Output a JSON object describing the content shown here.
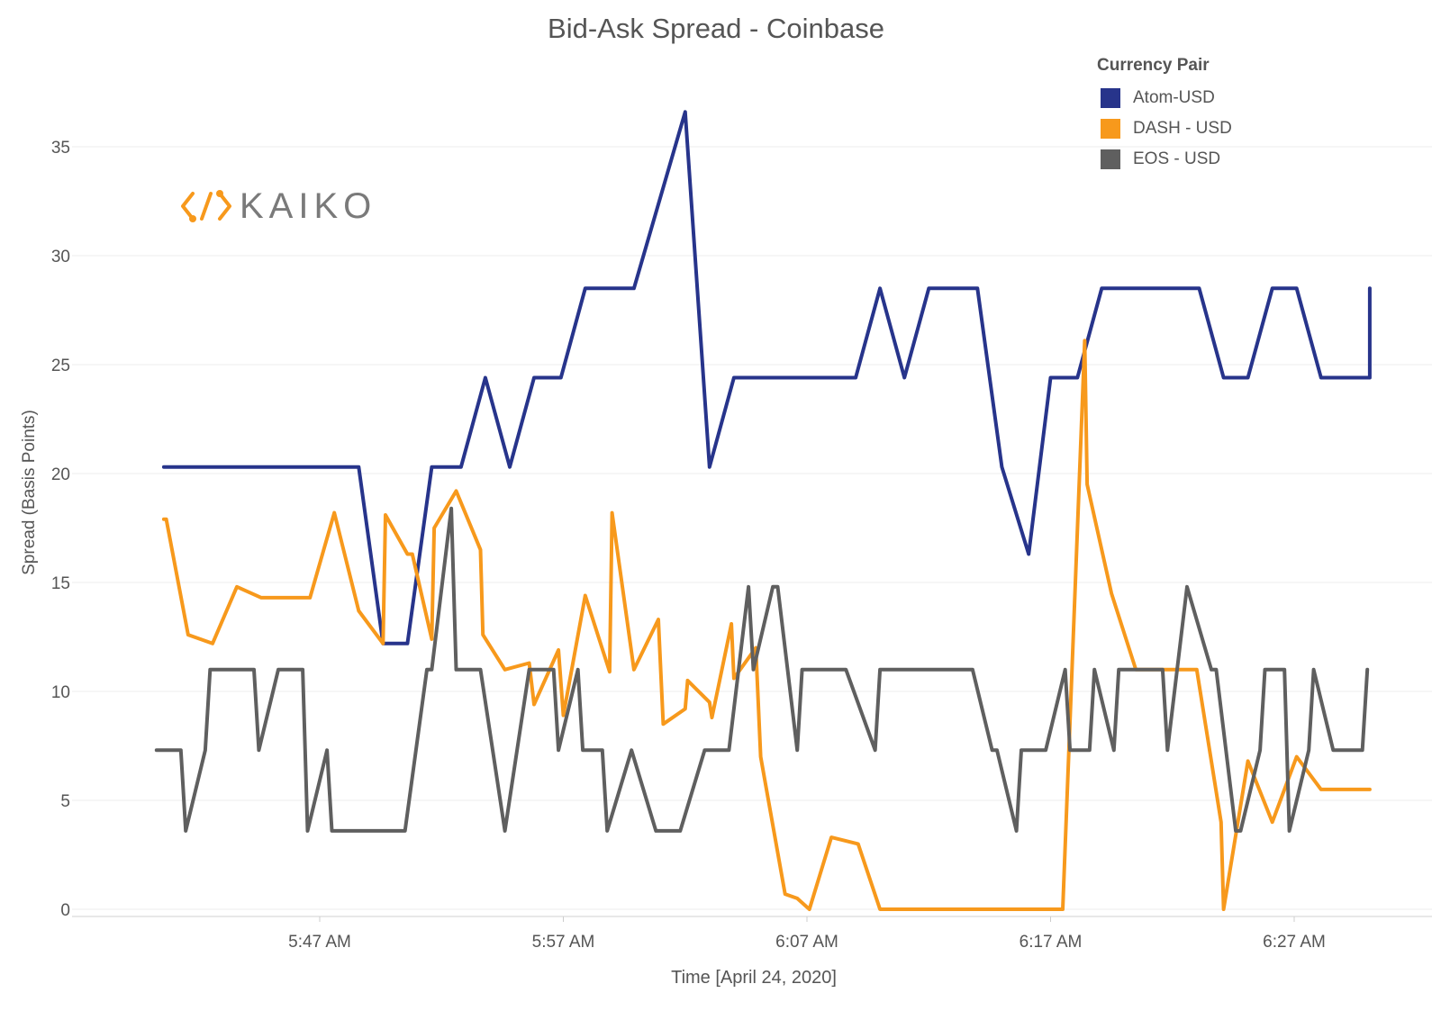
{
  "chart_data": {
    "type": "line",
    "title": "Bid-Ask Spread - Coinbase",
    "xlabel": "Time [April 24, 2020]",
    "ylabel": "Spread (Basis Points)",
    "ylim": [
      0,
      37
    ],
    "y_ticks": [
      0,
      5,
      10,
      15,
      20,
      25,
      30,
      35
    ],
    "x_ticks": [
      {
        "t": 47,
        "label": "5:47 AM"
      },
      {
        "t": 57,
        "label": "5:57 AM"
      },
      {
        "t": 67,
        "label": "6:07 AM"
      },
      {
        "t": 77,
        "label": "6:17 AM"
      },
      {
        "t": 87,
        "label": "6:27 AM"
      }
    ],
    "xlim": [
      40.3,
      92.9
    ],
    "x_unit_note": "x values are minutes past 5:00 AM on April 24, 2020",
    "grid": "horizontal",
    "legend_title": "Currency Pair",
    "legend_position": "top-right",
    "series": [
      {
        "name": "Atom-USD",
        "color": "#27348b",
        "points": [
          [
            40.6,
            20.3
          ],
          [
            48.6,
            20.3
          ],
          [
            49.6,
            12.2
          ],
          [
            50.6,
            12.2
          ],
          [
            51.6,
            20.3
          ],
          [
            52.8,
            20.3
          ],
          [
            53.8,
            24.4
          ],
          [
            54.8,
            20.3
          ],
          [
            55.8,
            24.4
          ],
          [
            56.9,
            24.4
          ],
          [
            57.9,
            28.5
          ],
          [
            59.9,
            28.5
          ],
          [
            62,
            36.6
          ],
          [
            63,
            20.3
          ],
          [
            64,
            24.4
          ],
          [
            69,
            24.4
          ],
          [
            70,
            28.5
          ],
          [
            71,
            24.4
          ],
          [
            72,
            28.5
          ],
          [
            74,
            28.5
          ],
          [
            75,
            20.3
          ],
          [
            76.1,
            16.3
          ],
          [
            77,
            24.4
          ],
          [
            78.1,
            24.4
          ],
          [
            79.1,
            28.5
          ],
          [
            83.1,
            28.5
          ],
          [
            84.1,
            24.4
          ],
          [
            85.1,
            24.4
          ],
          [
            86.1,
            28.5
          ],
          [
            87.1,
            28.5
          ],
          [
            88.1,
            24.4
          ],
          [
            90.1,
            24.4
          ],
          [
            90.1,
            28.5
          ]
        ]
      },
      {
        "name": "DASH - USD",
        "color": "#f7991c",
        "points": [
          [
            40.6,
            17.9
          ],
          [
            40.7,
            17.9
          ],
          [
            41.6,
            12.6
          ],
          [
            42.6,
            12.2
          ],
          [
            43.6,
            14.8
          ],
          [
            44.6,
            14.3
          ],
          [
            46.6,
            14.3
          ],
          [
            47.6,
            18.2
          ],
          [
            48.6,
            13.7
          ],
          [
            49.6,
            12.2
          ],
          [
            49.7,
            18.1
          ],
          [
            50.6,
            16.3
          ],
          [
            50.8,
            16.3
          ],
          [
            51.6,
            12.4
          ],
          [
            51.7,
            17.5
          ],
          [
            52.6,
            19.2
          ],
          [
            53.6,
            16.5
          ],
          [
            53.7,
            12.6
          ],
          [
            54.6,
            11
          ],
          [
            55.6,
            11.3
          ],
          [
            55.8,
            9.4
          ],
          [
            56.8,
            11.9
          ],
          [
            57,
            8.9
          ],
          [
            57.9,
            14.4
          ],
          [
            58.9,
            10.9
          ],
          [
            59,
            18.2
          ],
          [
            59.9,
            11
          ],
          [
            60.9,
            13.3
          ],
          [
            61.1,
            8.5
          ],
          [
            62,
            9.2
          ],
          [
            62.1,
            10.5
          ],
          [
            63,
            9.5
          ],
          [
            63.1,
            8.8
          ],
          [
            63.9,
            13.1
          ],
          [
            64,
            10.6
          ],
          [
            64.9,
            12
          ],
          [
            65.1,
            7
          ],
          [
            66.1,
            0.7
          ],
          [
            66.6,
            0.5
          ],
          [
            67.1,
            0
          ],
          [
            68,
            3.3
          ],
          [
            69.1,
            3
          ],
          [
            70,
            0
          ],
          [
            77.5,
            0
          ],
          [
            78.4,
            26.1
          ],
          [
            78.5,
            19.5
          ],
          [
            79.5,
            14.5
          ],
          [
            80.5,
            11
          ],
          [
            83,
            11
          ],
          [
            84,
            4
          ],
          [
            84.1,
            0
          ],
          [
            85.1,
            6.8
          ],
          [
            86.1,
            4
          ],
          [
            87.1,
            7
          ],
          [
            88.1,
            5.5
          ],
          [
            90.1,
            5.5
          ]
        ]
      },
      {
        "name": "EOS - USD",
        "color": "#5f5f5f",
        "points": [
          [
            40.3,
            7.3
          ],
          [
            41.3,
            7.3
          ],
          [
            41.5,
            3.6
          ],
          [
            42.3,
            7.3
          ],
          [
            42.5,
            11
          ],
          [
            44.3,
            11
          ],
          [
            44.5,
            7.3
          ],
          [
            45.3,
            11
          ],
          [
            46.3,
            11
          ],
          [
            46.5,
            3.6
          ],
          [
            47.3,
            7.3
          ],
          [
            47.5,
            3.6
          ],
          [
            50.5,
            3.6
          ],
          [
            51.4,
            11
          ],
          [
            51.6,
            11
          ],
          [
            52.4,
            18.4
          ],
          [
            52.6,
            11
          ],
          [
            53.6,
            11
          ],
          [
            54.6,
            3.6
          ],
          [
            55.6,
            11
          ],
          [
            56.6,
            11
          ],
          [
            56.8,
            7.3
          ],
          [
            57.6,
            11
          ],
          [
            57.8,
            7.3
          ],
          [
            58.6,
            7.3
          ],
          [
            58.8,
            3.6
          ],
          [
            59.8,
            7.3
          ],
          [
            60.8,
            3.6
          ],
          [
            61.8,
            3.6
          ],
          [
            62.8,
            7.3
          ],
          [
            63.8,
            7.3
          ],
          [
            64.6,
            14.8
          ],
          [
            64.8,
            11
          ],
          [
            65.6,
            14.8
          ],
          [
            65.8,
            14.8
          ],
          [
            66.6,
            7.3
          ],
          [
            66.8,
            11
          ],
          [
            68.6,
            11
          ],
          [
            69.8,
            7.3
          ],
          [
            70,
            11
          ],
          [
            73.8,
            11
          ],
          [
            74.6,
            7.3
          ],
          [
            74.8,
            7.3
          ],
          [
            75.6,
            3.6
          ],
          [
            75.8,
            7.3
          ],
          [
            76.8,
            7.3
          ],
          [
            77.6,
            11
          ],
          [
            77.8,
            7.3
          ],
          [
            78.6,
            7.3
          ],
          [
            78.8,
            11
          ],
          [
            79.6,
            7.3
          ],
          [
            79.8,
            11
          ],
          [
            81.6,
            11
          ],
          [
            81.8,
            7.3
          ],
          [
            82.6,
            14.8
          ],
          [
            83.6,
            11
          ],
          [
            83.8,
            11
          ],
          [
            84.6,
            3.6
          ],
          [
            84.8,
            3.6
          ],
          [
            85.6,
            7.3
          ],
          [
            85.8,
            11
          ],
          [
            86.6,
            11
          ],
          [
            86.8,
            3.6
          ],
          [
            87.6,
            7.3
          ],
          [
            87.8,
            11
          ],
          [
            88.6,
            7.3
          ],
          [
            89.8,
            7.3
          ],
          [
            90,
            11
          ]
        ]
      }
    ]
  },
  "logo_text": "KAIKO"
}
